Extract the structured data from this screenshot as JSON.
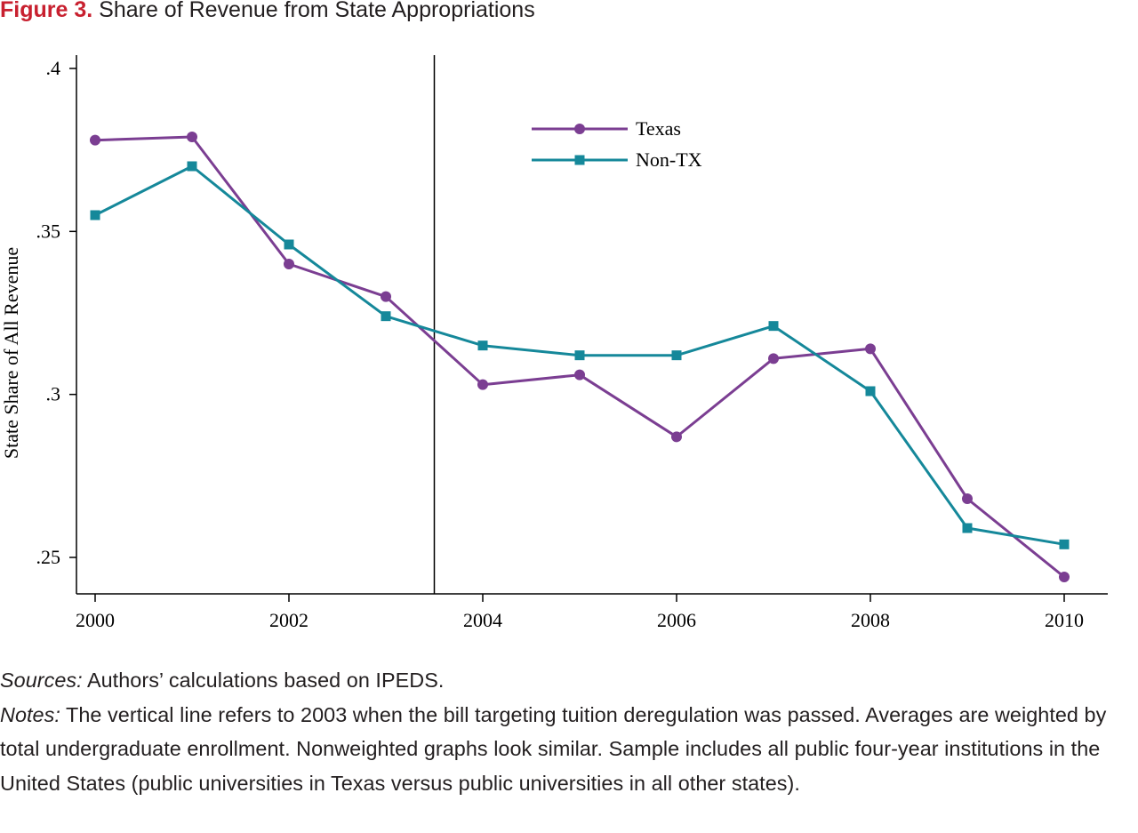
{
  "figure": {
    "number": "Figure 3.",
    "title": "Share of Revenue from State Appropriations"
  },
  "colors": {
    "figure_label": "#c8202f",
    "texas": "#7b3e92",
    "non_tx": "#15889a",
    "axis": "#000000"
  },
  "chart_data": {
    "type": "line",
    "title": "Share of Revenue from State Appropriations",
    "xlabel": "",
    "ylabel": "State Share of All Revenue",
    "x": [
      2000,
      2001,
      2002,
      2003,
      2004,
      2005,
      2006,
      2007,
      2008,
      2009,
      2010
    ],
    "xlim": [
      1999.9,
      2010.5
    ],
    "ylim": [
      0.2385,
      0.404
    ],
    "x_ticks": [
      2000,
      2002,
      2004,
      2006,
      2008,
      2010
    ],
    "x_tick_labels": [
      "2000",
      "2002",
      "2004",
      "2006",
      "2008",
      "2010"
    ],
    "y_ticks": [
      0.25,
      0.3,
      0.35,
      0.4
    ],
    "y_tick_labels": [
      ".25",
      ".3",
      ".35",
      ".4"
    ],
    "vertical_line_x": 2003.5,
    "grid": false,
    "legend_position": "top-center",
    "series": [
      {
        "name": "Texas",
        "marker": "circle",
        "color": "#7b3e92",
        "values": [
          0.378,
          0.379,
          0.34,
          0.33,
          0.303,
          0.306,
          0.287,
          0.311,
          0.314,
          0.268,
          0.244
        ]
      },
      {
        "name": "Non-TX",
        "marker": "square",
        "color": "#15889a",
        "values": [
          0.355,
          0.37,
          0.346,
          0.324,
          0.315,
          0.312,
          0.312,
          0.321,
          0.301,
          0.259,
          0.254
        ]
      }
    ]
  },
  "notes": {
    "sources_label": "Sources:",
    "sources_text": " Authors’ calculations based on IPEDS.",
    "notes_label": "Notes:",
    "notes_text": " The vertical line refers to 2003 when the bill targeting tuition deregulation was passed. Averages are weighted by total undergraduate enrollment. Nonweighted graphs look similar. Sample includes all public four-year institutions in the United States (public universities in Texas versus public universities in all other states)."
  }
}
